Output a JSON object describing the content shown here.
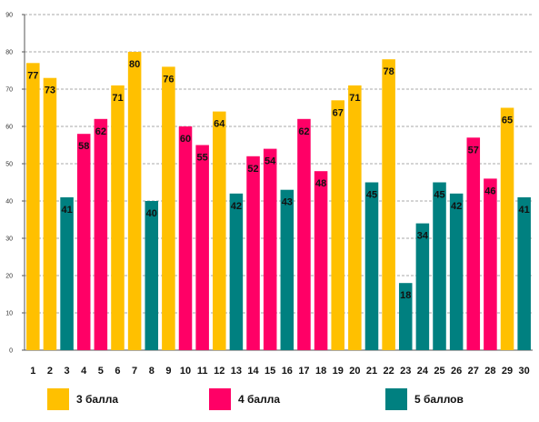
{
  "chart_data": {
    "type": "bar",
    "categories": [
      "1",
      "2",
      "3",
      "4",
      "5",
      "6",
      "7",
      "8",
      "9",
      "10",
      "11",
      "12",
      "13",
      "14",
      "15",
      "16",
      "17",
      "18",
      "19",
      "20",
      "21",
      "22",
      "23",
      "24",
      "25",
      "26",
      "27",
      "28",
      "29",
      "30"
    ],
    "values": [
      77,
      73,
      41,
      58,
      62,
      71,
      80,
      40,
      76,
      60,
      55,
      64,
      42,
      52,
      54,
      43,
      62,
      48,
      67,
      71,
      45,
      78,
      18,
      34,
      45,
      42,
      57,
      46,
      65,
      41
    ],
    "groups": [
      3,
      3,
      5,
      4,
      4,
      3,
      3,
      5,
      3,
      4,
      4,
      3,
      5,
      4,
      4,
      5,
      4,
      4,
      3,
      3,
      5,
      3,
      5,
      5,
      5,
      5,
      4,
      4,
      3,
      5
    ],
    "ylim": [
      0,
      90
    ],
    "yticks": [
      0,
      10,
      20,
      30,
      40,
      50,
      60,
      70,
      80,
      90
    ],
    "grid": true,
    "legend_position": "bottom",
    "legend": [
      {
        "group": 3,
        "label": "3 балла",
        "color": "#FFC000"
      },
      {
        "group": 4,
        "label": "4 балла",
        "color": "#FF0066"
      },
      {
        "group": 5,
        "label": "5 баллов",
        "color": "#008080"
      }
    ]
  }
}
